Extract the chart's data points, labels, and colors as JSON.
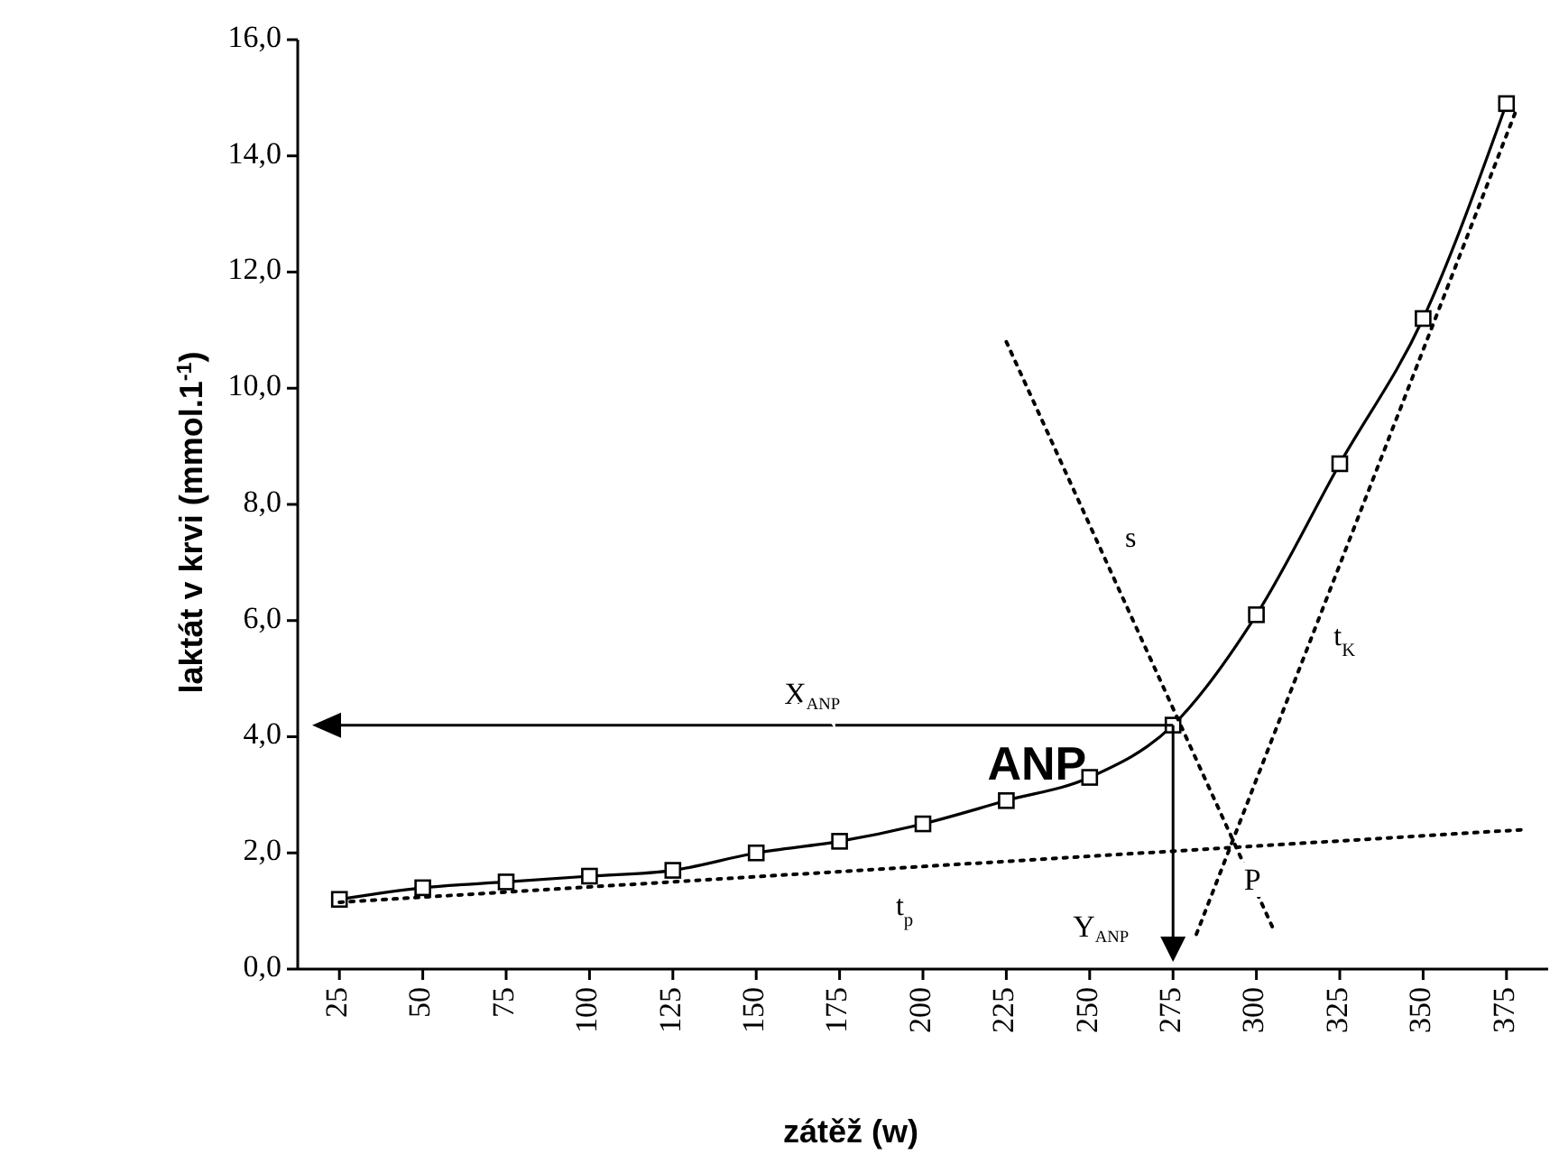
{
  "chart_data": {
    "type": "line",
    "xlabel": "zátěž (w)",
    "ylabel": "laktát v krvi (mmol.1$^{-1}$)",
    "xlim": [
      12.5,
      387.5
    ],
    "xticks": [
      25,
      50,
      75,
      100,
      125,
      150,
      175,
      200,
      225,
      250,
      275,
      300,
      325,
      350,
      375
    ],
    "ylim": [
      0,
      16
    ],
    "yticks": [
      {
        "value": 0,
        "label": "0,0"
      },
      {
        "value": 2,
        "label": "2,0"
      },
      {
        "value": 4,
        "label": "4,0"
      },
      {
        "value": 6,
        "label": "6,0"
      },
      {
        "value": 8,
        "label": "8,0"
      },
      {
        "value": 10,
        "label": "10,0"
      },
      {
        "value": 12,
        "label": "12,0"
      },
      {
        "value": 14,
        "label": "14,0"
      },
      {
        "value": 16,
        "label": "16,0"
      }
    ],
    "marker": "square",
    "line_style": "solid",
    "grid": false,
    "series": [
      {
        "color": "#000000",
        "x": [
          25,
          50,
          75,
          100,
          125,
          150,
          175,
          200,
          225,
          250,
          275,
          300,
          325,
          350,
          375
        ],
        "values": [
          1.2,
          1.4,
          1.5,
          1.6,
          1.7,
          2.0,
          2.2,
          2.5,
          2.9,
          3.3,
          4.2,
          6.1,
          8.7,
          11.2,
          14.9
        ]
      },
      {
        "name": "t$_{p}$",
        "color": "#000000",
        "marker": "none",
        "line_style": "dotted",
        "x": [
          25,
          380
        ],
        "values": [
          1.15,
          2.4
        ]
      },
      {
        "name": "s",
        "color": "#000000",
        "marker": "none",
        "line_style": "dotted",
        "x": [
          225,
          305
        ],
        "values": [
          10.8,
          0.7
        ]
      },
      {
        "name": "t$_{K}$",
        "color": "#000000",
        "marker": "none",
        "line_style": "dotted",
        "x": [
          282,
          378
        ],
        "values": [
          0.6,
          14.8
        ]
      }
    ],
    "annotations": [
      {
        "text": "ANP",
        "x": 275,
        "y": 4.2
      },
      "X$_{ANP}$",
      "Y$_{ANP}$",
      "P"
    ]
  }
}
